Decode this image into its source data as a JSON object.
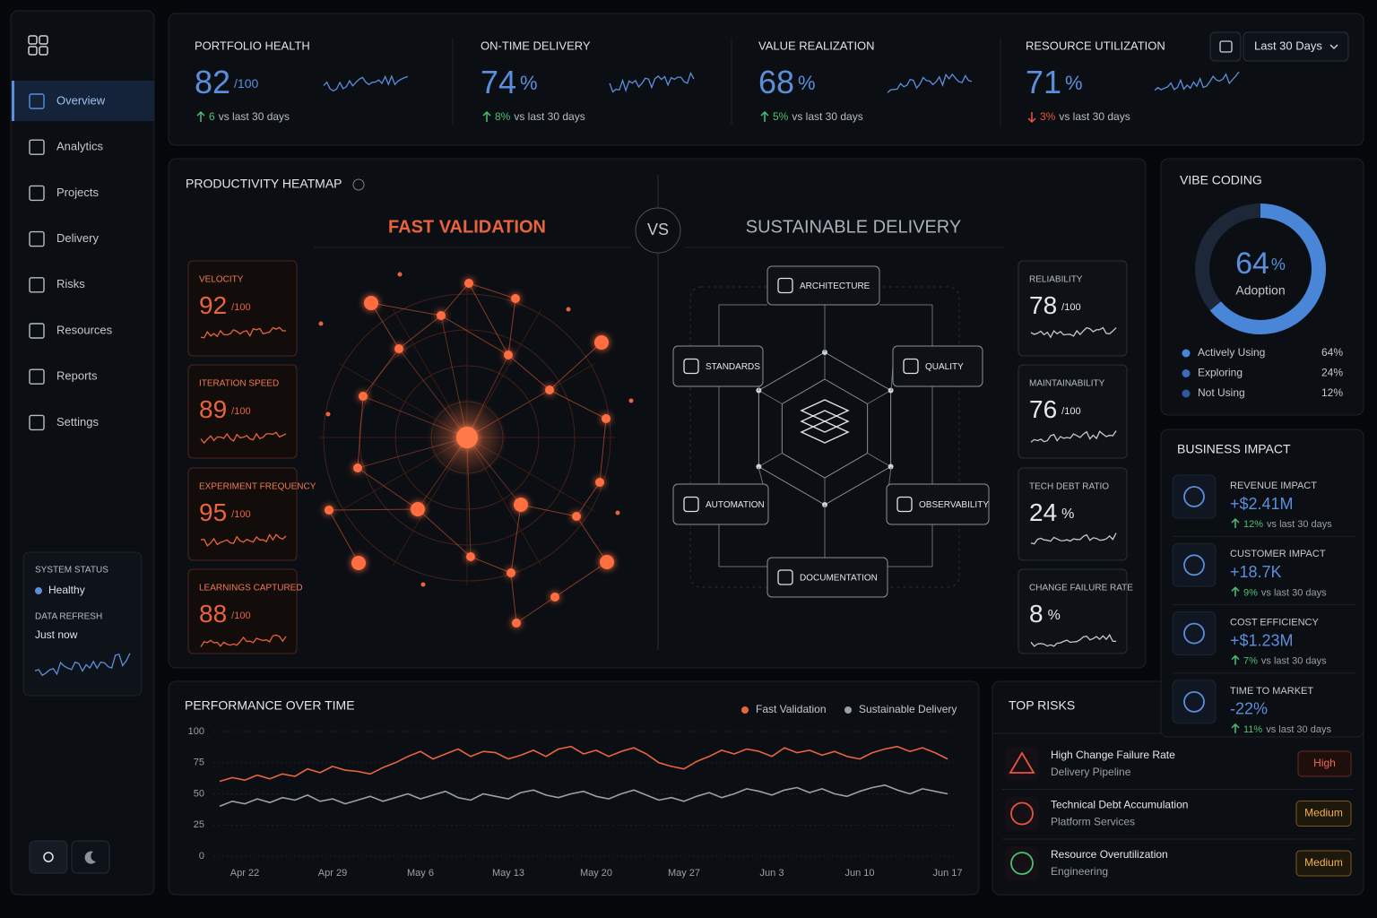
{
  "sidebar": {
    "nav": [
      "Overview",
      "Analytics",
      "Projects",
      "Delivery",
      "Risks",
      "Resources",
      "Reports",
      "Settings"
    ],
    "system_status": {
      "label": "SYSTEM STATUS",
      "status": "Healthy",
      "refresh_label": "DATA REFRESH",
      "refresh": "Just now"
    }
  },
  "kpis": {
    "date_range": "Last 30 Days",
    "items": [
      {
        "label": "PORTFOLIO HEALTH",
        "value": 82,
        "unit": "/100",
        "change": "6",
        "note": "vs last 30 days",
        "trend": "up"
      },
      {
        "label": "ON-TIME DELIVERY",
        "value": 74,
        "unit": "%",
        "change": "8%",
        "note": "vs last 30 days",
        "trend": "up"
      },
      {
        "label": "VALUE REALIZATION",
        "value": 68,
        "unit": "%",
        "change": "5%",
        "note": "vs last 30 days",
        "trend": "up"
      },
      {
        "label": "RESOURCE UTILIZATION",
        "value": 71,
        "unit": "%",
        "change": "3%",
        "note": "vs last 30 days",
        "trend": "down"
      }
    ]
  },
  "heatmap": {
    "title": "PRODUCTIVITY HEATMAP",
    "left_title": "FAST VALIDATION",
    "vs": "VS",
    "right_title": "SUSTAINABLE DELIVERY",
    "left_metrics": [
      {
        "label": "VELOCITY",
        "value": 92,
        "unit": "/100"
      },
      {
        "label": "ITERATION SPEED",
        "value": 89,
        "unit": "/100"
      },
      {
        "label": "EXPERIMENT FREQUENCY",
        "value": 95,
        "unit": "/100"
      },
      {
        "label": "LEARNINGS CAPTURED",
        "value": 88,
        "unit": "/100"
      }
    ],
    "right_metrics": [
      {
        "label": "RELIABILITY",
        "value": 78,
        "unit": "/100"
      },
      {
        "label": "MAINTAINABILITY",
        "value": 76,
        "unit": "/100"
      },
      {
        "label": "TECH DEBT RATIO",
        "value": 24,
        "unit": "%"
      },
      {
        "label": "CHANGE FAILURE RATE",
        "value": 8,
        "unit": "%"
      }
    ],
    "pillars": [
      "ARCHITECTURE",
      "STANDARDS",
      "QUALITY",
      "AUTOMATION",
      "OBSERVABILITY",
      "DOCUMENTATION"
    ]
  },
  "vibe_coding": {
    "title": "VIBE CODING",
    "value": 64,
    "unit": "%",
    "caption": "Adoption",
    "legend": [
      {
        "name": "Actively Using",
        "share": "64%"
      },
      {
        "name": "Exploring",
        "share": "24%"
      },
      {
        "name": "Not Using",
        "share": "12%"
      }
    ]
  },
  "business_impact": {
    "title": "BUSINESS IMPACT",
    "items": [
      {
        "label": "REVENUE IMPACT",
        "value": "+$2.41M",
        "change": "12%",
        "note": "vs last 30 days"
      },
      {
        "label": "CUSTOMER IMPACT",
        "value": "+18.7K",
        "change": "9%",
        "note": "vs last 30 days"
      },
      {
        "label": "COST EFFICIENCY",
        "value": "+$1.23M",
        "change": "7%",
        "note": "vs last 30 days"
      },
      {
        "label": "TIME TO MARKET",
        "value": "-22%",
        "change": "11%",
        "note": "vs last 30 days"
      }
    ]
  },
  "performance": {
    "type": "line",
    "title": "PERFORMANCE OVER TIME",
    "categories": [
      null,
      null,
      "Apr 22",
      null,
      null,
      null,
      null,
      null,
      null,
      "Apr 29",
      null,
      null,
      null,
      null,
      null,
      null,
      "May 6",
      null,
      null,
      null,
      null,
      null,
      null,
      "May 13",
      null,
      null,
      null,
      null,
      null,
      null,
      "May 20",
      null,
      null,
      null,
      null,
      null,
      null,
      "May 27",
      null,
      null,
      null,
      null,
      null,
      null,
      "Jun 3",
      null,
      null,
      null,
      null,
      null,
      null,
      "Jun 10",
      null,
      null,
      null,
      null,
      null,
      null,
      "Jun 17"
    ],
    "series": [
      {
        "name": "Fast Validation",
        "color": "#e8643c",
        "values": [
          60,
          63,
          61,
          65,
          62,
          66,
          64,
          70,
          67,
          72,
          69,
          68,
          66,
          71,
          75,
          80,
          84,
          78,
          82,
          86,
          80,
          84,
          83,
          78,
          81,
          85,
          80,
          86,
          88,
          82,
          85,
          80,
          84,
          87,
          82,
          75,
          72,
          70,
          76,
          80,
          85,
          82,
          86,
          84,
          80,
          87,
          83,
          85,
          81,
          84,
          80,
          78,
          83,
          86,
          88,
          84,
          87,
          83,
          78
        ]
      },
      {
        "name": "Sustainable Delivery",
        "color": "#9aa0aa",
        "values": [
          40,
          44,
          42,
          46,
          43,
          47,
          45,
          49,
          44,
          46,
          42,
          45,
          48,
          44,
          47,
          50,
          46,
          49,
          52,
          47,
          45,
          50,
          48,
          46,
          51,
          53,
          49,
          47,
          50,
          52,
          48,
          46,
          50,
          53,
          49,
          45,
          47,
          44,
          48,
          51,
          47,
          50,
          54,
          52,
          49,
          53,
          55,
          51,
          54,
          50,
          48,
          52,
          55,
          57,
          53,
          50,
          54,
          52,
          50
        ]
      }
    ],
    "ylim": [
      0,
      100
    ],
    "yticks": [
      0,
      25,
      50,
      75,
      100
    ],
    "grid": true
  },
  "top_risks": {
    "title": "TOP RISKS",
    "items": [
      {
        "title": "High Change Failure Rate",
        "subtitle": "Delivery Pipeline",
        "level": "High"
      },
      {
        "title": "Technical Debt Accumulation",
        "subtitle": "Platform Services",
        "level": "Medium"
      },
      {
        "title": "Resource Overutilization",
        "subtitle": "Engineering",
        "level": "Medium"
      }
    ]
  }
}
